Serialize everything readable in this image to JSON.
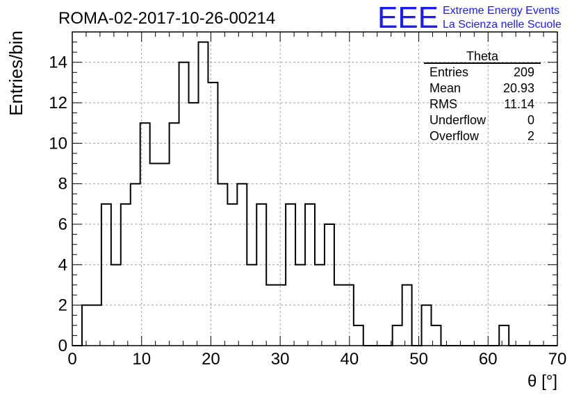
{
  "header": {
    "run_title": "ROMA-02-2017-10-26-00214",
    "logo_text": "EEE",
    "logo_line1": "Extreme Energy Events",
    "logo_line2": "La Scienza nelle Scuole"
  },
  "stats": {
    "name": "Theta",
    "rows": [
      {
        "label": "Entries",
        "value": "209"
      },
      {
        "label": "Mean",
        "value": "20.93"
      },
      {
        "label": "RMS",
        "value": "11.14"
      },
      {
        "label": "Underflow",
        "value": "0"
      },
      {
        "label": "Overflow",
        "value": "2"
      }
    ]
  },
  "colors": {
    "logo": "#1a1aff",
    "line": "#000000",
    "grid": "#a0a0a0"
  },
  "chart_data": {
    "type": "histogram",
    "xlabel": "θ [°]",
    "ylabel": "Entries/bin",
    "xlim": [
      0,
      70
    ],
    "ylim": [
      0,
      15.5
    ],
    "grid": true,
    "bin_width": 1.4,
    "bin_start": 0,
    "values": [
      0,
      2,
      2,
      7,
      4,
      7,
      8,
      11,
      9,
      9,
      11,
      14,
      12,
      15,
      13,
      8,
      7,
      8,
      4,
      7,
      3,
      3,
      7,
      4,
      7,
      4,
      6,
      3,
      3,
      1,
      0,
      0,
      0,
      1,
      3,
      0,
      2,
      1,
      0,
      0,
      0,
      0,
      0,
      0,
      1,
      0,
      0,
      0,
      0,
      0
    ],
    "x_ticks": [
      0,
      10,
      20,
      30,
      40,
      50,
      60,
      70
    ],
    "y_ticks": [
      0,
      2,
      4,
      6,
      8,
      10,
      12,
      14
    ]
  }
}
